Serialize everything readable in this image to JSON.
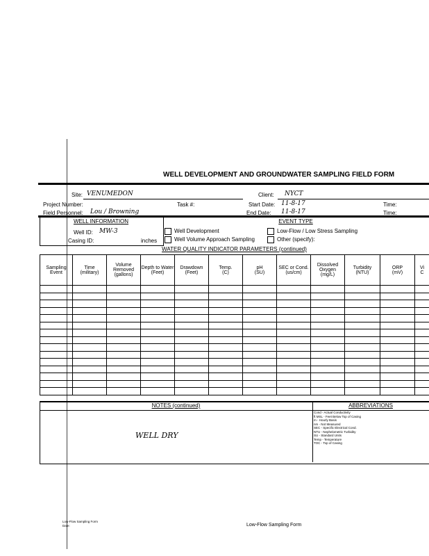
{
  "header": {
    "title": "WELL DEVELOPMENT AND GROUNDWATER SAMPLING FIELD FORM"
  },
  "info": {
    "site_label": "Site:",
    "site": "VENUMEDON",
    "client_label": "Client:",
    "client": "NYCT",
    "project_label": "Project Number:",
    "task_label": "Task #:",
    "start_label": "Start Date:",
    "start": "11-8-17",
    "time_label": "Time:",
    "personnel_label": "Field Personnel:",
    "personnel": "Lou / Browning",
    "end_label": "End Date:",
    "end": "11-8-17",
    "time2_label": "Time:"
  },
  "well": {
    "header": "WELL INFORMATION",
    "id_label": "Well ID:",
    "id": "MW-3",
    "casing_label": "Casing ID:",
    "casing_unit": "inches"
  },
  "event": {
    "header": "EVENT TYPE",
    "options": [
      "Well Development",
      "Well Volume Approach Sampling",
      "Low-Flow / Low Stress Sampling",
      "Other (specify):"
    ]
  },
  "table": {
    "title": "WATER QUALITY INDICATOR PARAMETERS (continued)",
    "columns": [
      [
        "Sampling",
        "Event"
      ],
      [
        "Time",
        "(military)"
      ],
      [
        "Volume Removed",
        "(gallons)"
      ],
      [
        "Depth to Water",
        "(Feet)"
      ],
      [
        "Drawdown",
        "(Feet)"
      ],
      [
        "Temp.",
        "(C)"
      ],
      [
        "pH",
        "(SU)"
      ],
      [
        "SEC or Cond.",
        "(us/cm)"
      ],
      [
        "Dissolved Oxygen",
        "(mg/L)"
      ],
      [
        "Turbidity",
        "(NTU)"
      ],
      [
        "ORP",
        "(mV)"
      ],
      [
        "Vi",
        "C"
      ]
    ]
  },
  "notes": {
    "header": "NOTES (continued)",
    "text": "WELL DRY"
  },
  "abbreviations": {
    "header": "ABBREVIATIONS",
    "items": [
      "Cond - Actual Conductivity",
      "ft MSL - Feet Below Top of Casing",
      "m - Hourly Basis",
      "nm - Not Measured",
      "SEC - Specific Electrical Cond.",
      "NTU - Nephelometric Turbidity",
      "SU - Standard Units",
      "Temp - Temperature",
      "TOC - Top of Casing"
    ]
  },
  "footer": {
    "left": "Low-Flow Sampling Form",
    "date": "Date:",
    "center": "Low-Flow Sampling Form"
  }
}
